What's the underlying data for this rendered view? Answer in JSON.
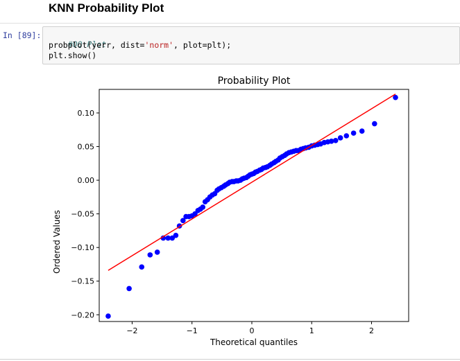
{
  "heading": "KNN Probability Plot",
  "cell": {
    "prompt": "In [89]:",
    "code_comment": "#QQ Plot",
    "code_line2_a": "probplot(yerr, dist=",
    "code_line2_str": "'norm'",
    "code_line2_b": ", plot=plt);",
    "code_line3": "plt.show()"
  },
  "chart_data": {
    "type": "scatter",
    "title": "Probability Plot",
    "xlabel": "Theoretical quantiles",
    "ylabel": "Ordered Values",
    "xlim": [
      -2.55,
      2.62
    ],
    "ylim": [
      -0.21,
      0.135
    ],
    "xticks": [
      -2,
      -1,
      0,
      1,
      2
    ],
    "xtick_labels": [
      "−2",
      "−1",
      "0",
      "1",
      "2"
    ],
    "yticks": [
      0.1,
      0.05,
      0.0,
      -0.05,
      -0.1,
      -0.15,
      -0.2
    ],
    "ytick_labels": [
      "0.10",
      "0.05",
      "0.00",
      "−0.05",
      "−0.10",
      "−0.15",
      "−0.20"
    ],
    "point_color": "#0000ff",
    "line_color": "#ff0000",
    "fit_line": {
      "x": [
        -2.4,
        2.4
      ],
      "y": [
        -0.134,
        0.128
      ]
    },
    "series": [
      {
        "x": [
          -2.4,
          -2.05,
          -1.84,
          -1.7,
          -1.58,
          -1.48,
          -1.4,
          -1.33,
          -1.27,
          -1.21,
          -1.15,
          -1.1,
          -1.05,
          -1.0,
          -0.95,
          -0.9,
          -0.86,
          -0.82,
          -0.78,
          -0.74,
          -0.7,
          -0.66,
          -0.62,
          -0.58,
          -0.55,
          -0.51,
          -0.47,
          -0.44,
          -0.4,
          -0.37,
          -0.33,
          -0.3,
          -0.26,
          -0.23,
          -0.19,
          -0.16,
          -0.13,
          -0.09,
          -0.06,
          -0.03,
          0.0,
          0.03,
          0.06,
          0.09,
          0.13,
          0.16,
          0.19,
          0.23,
          0.26,
          0.3,
          0.33,
          0.37,
          0.4,
          0.44,
          0.47,
          0.51,
          0.55,
          0.58,
          0.62,
          0.66,
          0.7,
          0.74,
          0.78,
          0.82,
          0.86,
          0.9,
          0.95,
          1.0,
          1.05,
          1.1,
          1.15,
          1.21,
          1.27,
          1.33,
          1.4,
          1.48,
          1.58,
          1.7,
          1.84,
          2.05,
          2.4
        ],
        "y": [
          -0.202,
          -0.161,
          -0.129,
          -0.111,
          -0.107,
          -0.086,
          -0.086,
          -0.086,
          -0.082,
          -0.068,
          -0.06,
          -0.054,
          -0.054,
          -0.053,
          -0.05,
          -0.045,
          -0.043,
          -0.04,
          -0.032,
          -0.029,
          -0.025,
          -0.022,
          -0.02,
          -0.015,
          -0.013,
          -0.011,
          -0.009,
          -0.007,
          -0.005,
          -0.003,
          -0.002,
          -0.002,
          -0.001,
          -0.001,
          0.0,
          0.002,
          0.003,
          0.004,
          0.006,
          0.008,
          0.009,
          0.01,
          0.012,
          0.013,
          0.015,
          0.016,
          0.018,
          0.019,
          0.02,
          0.022,
          0.024,
          0.026,
          0.028,
          0.03,
          0.033,
          0.035,
          0.037,
          0.039,
          0.041,
          0.042,
          0.043,
          0.044,
          0.044,
          0.046,
          0.047,
          0.048,
          0.049,
          0.051,
          0.052,
          0.053,
          0.054,
          0.056,
          0.057,
          0.058,
          0.059,
          0.063,
          0.066,
          0.07,
          0.073,
          0.084,
          0.123
        ]
      }
    ]
  }
}
